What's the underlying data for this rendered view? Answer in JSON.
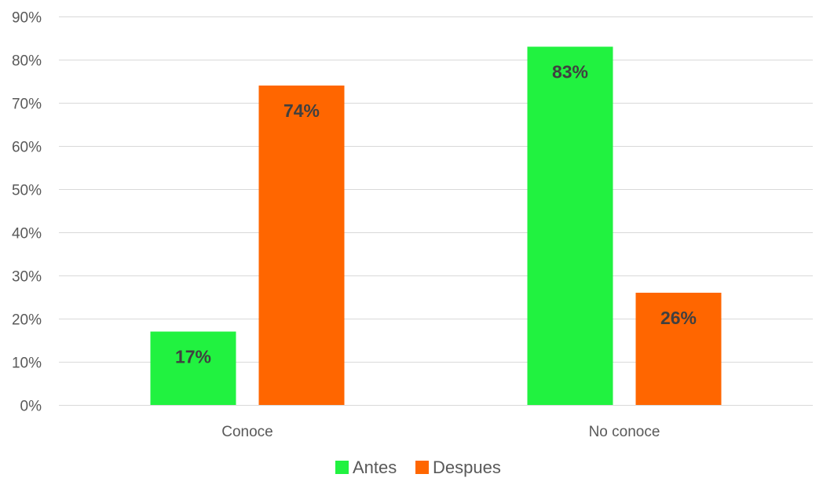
{
  "chart_data": {
    "type": "bar",
    "title": "",
    "xlabel": "",
    "ylabel": "",
    "categories": [
      "Conoce",
      "No conoce"
    ],
    "series": [
      {
        "name": "Antes",
        "values": [
          17,
          83
        ],
        "labels": [
          "17%",
          "83%"
        ],
        "color": "#21F240"
      },
      {
        "name": "Despues",
        "values": [
          74,
          26
        ],
        "labels": [
          "74%",
          "26%"
        ],
        "color": "#FF6600"
      }
    ],
    "ylim": [
      0,
      90
    ],
    "yticks": [
      0,
      10,
      20,
      30,
      40,
      50,
      60,
      70,
      80,
      90
    ],
    "ytick_labels": [
      "0%",
      "10%",
      "20%",
      "30%",
      "40%",
      "50%",
      "60%",
      "70%",
      "80%",
      "90%"
    ],
    "grid": true,
    "legend_position": "bottom",
    "gridline_color": "#D9D9D9"
  }
}
